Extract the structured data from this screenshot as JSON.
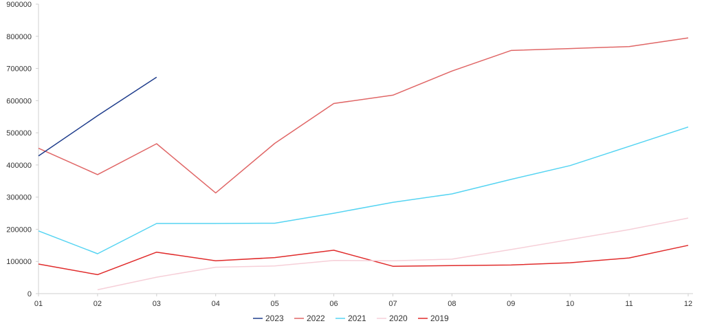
{
  "chart_data": {
    "type": "line",
    "categories": [
      "01",
      "02",
      "03",
      "04",
      "05",
      "06",
      "07",
      "08",
      "09",
      "10",
      "11",
      "12"
    ],
    "ylim": [
      0,
      900000
    ],
    "yticks": [
      0,
      100000,
      200000,
      300000,
      400000,
      500000,
      600000,
      700000,
      800000,
      900000
    ],
    "ytick_labels": [
      "0",
      "100000",
      "200000",
      "300000",
      "400000",
      "500000",
      "600000",
      "700000",
      "800000",
      "900000"
    ],
    "grid": false,
    "legend_position": "bottom-center",
    "series": [
      {
        "name": "2023",
        "color": "#1f3d8c",
        "values": [
          428000,
          553000,
          673000,
          null,
          null,
          null,
          null,
          null,
          null,
          null,
          null,
          null
        ]
      },
      {
        "name": "2022",
        "color": "#e06666",
        "values": [
          452000,
          370000,
          466000,
          313000,
          467000,
          591000,
          617000,
          692000,
          756000,
          762000,
          768000,
          795000
        ]
      },
      {
        "name": "2021",
        "color": "#55d4f2",
        "values": [
          195000,
          124000,
          218000,
          218000,
          219000,
          250000,
          284000,
          310000,
          355000,
          398000,
          458000,
          518000
        ]
      },
      {
        "name": "2020",
        "color": "#f6cfd8",
        "values": [
          null,
          12000,
          51000,
          82000,
          86000,
          103000,
          102000,
          107000,
          137000,
          168000,
          199000,
          235000
        ]
      },
      {
        "name": "2019",
        "color": "#e02b2b",
        "values": [
          92000,
          59000,
          129000,
          102000,
          112000,
          135000,
          85000,
          87000,
          89000,
          96000,
          111000,
          150000
        ]
      }
    ]
  }
}
